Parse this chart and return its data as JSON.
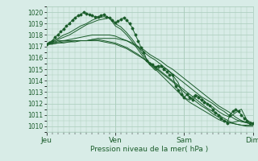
{
  "bg_color": "#d8ece7",
  "grid_color": "#aaccbb",
  "line_color": "#1a5c2a",
  "marker_color": "#1a5c2a",
  "xlabel": "Pression niveau de la mer( hPa )",
  "xlabel_color": "#1a5c2a",
  "tick_label_color": "#1a5c2a",
  "day_labels": [
    "Jeu",
    "Ven",
    "Sam",
    "Dim"
  ],
  "day_positions": [
    0,
    72,
    144,
    216
  ],
  "ylim": [
    1009.5,
    1020.5
  ],
  "yticks": [
    1010,
    1011,
    1012,
    1013,
    1014,
    1015,
    1016,
    1017,
    1018,
    1019,
    1020
  ],
  "series": [
    {
      "x": [
        0,
        6,
        12,
        18,
        24,
        30,
        36,
        42,
        48,
        54,
        60,
        66,
        72,
        78,
        84,
        90,
        96,
        102,
        108,
        114,
        120,
        126,
        132,
        138,
        144,
        150,
        156,
        162,
        168,
        174,
        180,
        186,
        192,
        198,
        204,
        210,
        216
      ],
      "y": [
        1017.2,
        1017.3,
        1017.5,
        1017.5,
        1017.5,
        1017.5,
        1017.5,
        1017.5,
        1017.6,
        1017.7,
        1017.7,
        1017.7,
        1017.7,
        1017.6,
        1017.5,
        1017.3,
        1017.0,
        1016.7,
        1016.3,
        1016.0,
        1015.7,
        1015.3,
        1015.0,
        1014.6,
        1014.2,
        1013.8,
        1013.4,
        1013.0,
        1012.6,
        1012.2,
        1011.8,
        1011.5,
        1011.2,
        1010.8,
        1010.5,
        1010.3,
        1010.2
      ]
    },
    {
      "x": [
        0,
        6,
        12,
        18,
        24,
        30,
        36,
        42,
        48,
        54,
        60,
        66,
        72,
        78,
        84,
        90,
        96,
        102,
        108,
        114,
        120,
        126,
        132,
        138,
        144,
        150,
        156,
        162,
        168,
        174,
        180,
        186,
        192,
        198,
        204,
        210,
        216
      ],
      "y": [
        1017.2,
        1017.3,
        1017.4,
        1017.5,
        1017.6,
        1017.7,
        1017.8,
        1017.9,
        1018.0,
        1018.0,
        1018.0,
        1018.0,
        1017.9,
        1017.7,
        1017.5,
        1017.2,
        1016.9,
        1016.5,
        1016.1,
        1015.8,
        1015.4,
        1015.0,
        1014.6,
        1014.2,
        1013.8,
        1013.4,
        1013.0,
        1012.6,
        1012.3,
        1012.0,
        1011.6,
        1011.3,
        1010.9,
        1010.6,
        1010.4,
        1010.3,
        1010.2
      ]
    },
    {
      "x": [
        0,
        6,
        12,
        18,
        24,
        30,
        36,
        42,
        48,
        54,
        60,
        66,
        72,
        78,
        84,
        90,
        96,
        102,
        108,
        114,
        120,
        126,
        132,
        138,
        144,
        150,
        156,
        162,
        168,
        174,
        180,
        186,
        192,
        198,
        204,
        210,
        216
      ],
      "y": [
        1017.2,
        1017.2,
        1017.3,
        1017.3,
        1017.4,
        1017.4,
        1017.5,
        1017.5,
        1017.5,
        1017.5,
        1017.4,
        1017.3,
        1017.2,
        1017.0,
        1016.8,
        1016.5,
        1016.2,
        1015.9,
        1015.5,
        1015.1,
        1014.7,
        1014.3,
        1013.9,
        1013.5,
        1013.0,
        1012.6,
        1012.2,
        1011.8,
        1011.5,
        1011.1,
        1010.8,
        1010.5,
        1010.3,
        1010.2,
        1010.1,
        1010.1,
        1010.1
      ]
    },
    {
      "x": [
        0,
        6,
        12,
        18,
        24,
        30,
        36,
        42,
        48,
        54,
        60,
        66,
        72,
        78,
        84,
        90,
        96,
        102,
        108,
        114,
        120,
        126,
        132,
        138,
        144,
        150,
        156,
        162,
        168,
        174,
        180,
        186,
        192,
        198,
        204,
        210,
        216
      ],
      "y": [
        1017.2,
        1017.2,
        1017.3,
        1017.4,
        1017.4,
        1017.5,
        1017.5,
        1017.5,
        1017.6,
        1017.6,
        1017.5,
        1017.4,
        1017.3,
        1017.1,
        1016.9,
        1016.6,
        1016.3,
        1015.9,
        1015.6,
        1015.2,
        1014.8,
        1014.4,
        1014.0,
        1013.6,
        1013.2,
        1012.8,
        1012.4,
        1012.0,
        1011.6,
        1011.3,
        1011.0,
        1010.7,
        1010.4,
        1010.2,
        1010.1,
        1010.0,
        1010.0
      ]
    },
    {
      "x": [
        0,
        6,
        12,
        18,
        24,
        30,
        36,
        42,
        48,
        54,
        60,
        66,
        72,
        78,
        84,
        90,
        96,
        102,
        108,
        114,
        120,
        126,
        132,
        138,
        144,
        150,
        156,
        162,
        168,
        174,
        180,
        186,
        192,
        198,
        204,
        210,
        216
      ],
      "y": [
        1017.2,
        1017.4,
        1017.6,
        1017.8,
        1018.0,
        1018.3,
        1018.6,
        1018.9,
        1019.1,
        1019.3,
        1019.4,
        1019.5,
        1019.0,
        1018.7,
        1018.2,
        1017.6,
        1016.9,
        1016.2,
        1015.5,
        1015.0,
        1014.5,
        1014.0,
        1013.5,
        1013.0,
        1012.5,
        1012.1,
        1011.8,
        1011.5,
        1011.2,
        1010.9,
        1010.6,
        1010.4,
        1010.3,
        1010.4,
        1010.5,
        1010.3,
        1010.2
      ]
    },
    {
      "x": [
        0,
        6,
        12,
        18,
        24,
        30,
        36,
        42,
        48,
        54,
        60,
        66,
        72,
        78,
        84,
        90,
        96,
        102,
        108,
        114,
        120,
        126,
        132,
        138,
        144,
        150,
        156,
        162,
        168,
        174,
        180,
        186,
        192,
        198,
        204,
        210,
        216
      ],
      "y": [
        1017.2,
        1017.5,
        1017.7,
        1018.0,
        1018.2,
        1018.5,
        1018.8,
        1019.0,
        1019.3,
        1019.5,
        1019.6,
        1019.5,
        1018.8,
        1018.5,
        1018.0,
        1017.4,
        1016.7,
        1016.0,
        1015.4,
        1014.9,
        1015.2,
        1015.0,
        1014.5,
        1013.8,
        1012.5,
        1012.3,
        1012.8,
        1012.5,
        1012.0,
        1011.7,
        1011.3,
        1011.0,
        1010.8,
        1011.2,
        1011.5,
        1010.5,
        1010.3
      ]
    },
    {
      "x": [
        0,
        3,
        6,
        9,
        12,
        15,
        18,
        21,
        24,
        27,
        30,
        33,
        36,
        39,
        42,
        45,
        48,
        51,
        54,
        57,
        60,
        63,
        66,
        69,
        72,
        75,
        78,
        81,
        84,
        87,
        90,
        93,
        96,
        99,
        102,
        105,
        108,
        111,
        114,
        117,
        120,
        123,
        126,
        129,
        132,
        135,
        138,
        141,
        144,
        147,
        150,
        153,
        156,
        159,
        162,
        165,
        168,
        171,
        174,
        177,
        180,
        183,
        186,
        189,
        192,
        195,
        198,
        201,
        204,
        207,
        210,
        213,
        216
      ],
      "y": [
        1017.2,
        1017.3,
        1017.5,
        1017.8,
        1018.0,
        1018.3,
        1018.5,
        1018.8,
        1019.0,
        1019.3,
        1019.5,
        1019.7,
        1019.8,
        1020.0,
        1019.9,
        1019.8,
        1019.7,
        1019.6,
        1019.6,
        1019.7,
        1019.8,
        1019.6,
        1019.5,
        1019.3,
        1019.1,
        1019.2,
        1019.4,
        1019.5,
        1019.3,
        1019.0,
        1018.6,
        1018.0,
        1017.5,
        1016.9,
        1016.5,
        1015.8,
        1015.5,
        1015.4,
        1015.2,
        1015.3,
        1015.3,
        1015.0,
        1014.8,
        1014.5,
        1014.5,
        1013.5,
        1013.2,
        1012.8,
        1012.5,
        1012.8,
        1012.5,
        1012.3,
        1012.7,
        1012.5,
        1012.3,
        1012.1,
        1012.0,
        1011.8,
        1011.5,
        1011.2,
        1011.0,
        1010.7,
        1010.5,
        1010.3,
        1011.0,
        1011.3,
        1011.5,
        1011.3,
        1011.0,
        1010.7,
        1010.5,
        1010.3,
        1010.3
      ]
    }
  ]
}
